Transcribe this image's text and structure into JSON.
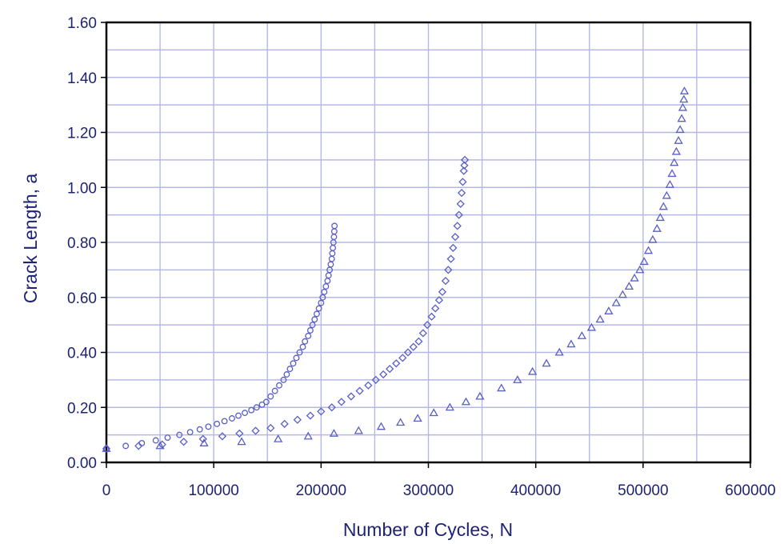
{
  "chart_data": {
    "type": "scatter",
    "title": "",
    "xlabel": "Number of Cycles, N",
    "ylabel": "Crack Length, a",
    "xlim": [
      0,
      600000
    ],
    "ylim": [
      0,
      1.6
    ],
    "x_ticks": [
      0,
      100000,
      200000,
      300000,
      400000,
      500000,
      600000
    ],
    "x_tick_labels": [
      "0",
      "100000",
      "200000",
      "300000",
      "400000",
      "500000",
      "600000"
    ],
    "y_ticks": [
      0,
      0.2,
      0.4,
      0.6,
      0.8,
      1.0,
      1.2,
      1.4,
      1.6
    ],
    "y_tick_labels": [
      "0.00",
      "0.20",
      "0.40",
      "0.60",
      "0.80",
      "1.00",
      "1.20",
      "1.40",
      "1.60"
    ],
    "grid": true,
    "legend": "none",
    "colors": {
      "marker": "#5a5fc8",
      "grid": "#b4b8e8",
      "text": "#1e2374",
      "frame": "#000000"
    },
    "series": [
      {
        "marker": "circle",
        "x": [
          0,
          18000,
          33000,
          46000,
          57000,
          68000,
          78000,
          87000,
          95000,
          103000,
          110000,
          117000,
          123000,
          129000,
          135000,
          140000,
          145000,
          149000,
          153000,
          157000,
          161000,
          165000,
          168000,
          171000,
          174000,
          177000,
          180000,
          183000,
          185000,
          188000,
          190000,
          192000,
          194000,
          196000,
          198000,
          200000,
          201500,
          203000,
          204500,
          206000,
          207000,
          208000,
          209000,
          210000,
          210500,
          211000,
          211500,
          212000,
          212300,
          212500
        ],
        "y": [
          0.05,
          0.06,
          0.07,
          0.08,
          0.09,
          0.1,
          0.11,
          0.12,
          0.13,
          0.14,
          0.15,
          0.16,
          0.17,
          0.18,
          0.19,
          0.2,
          0.21,
          0.22,
          0.24,
          0.26,
          0.28,
          0.3,
          0.32,
          0.34,
          0.36,
          0.38,
          0.4,
          0.42,
          0.44,
          0.46,
          0.48,
          0.5,
          0.52,
          0.54,
          0.56,
          0.58,
          0.6,
          0.62,
          0.64,
          0.66,
          0.68,
          0.7,
          0.72,
          0.74,
          0.76,
          0.78,
          0.8,
          0.82,
          0.84,
          0.86
        ]
      },
      {
        "marker": "diamond",
        "x": [
          0,
          30000,
          52000,
          72000,
          90000,
          108000,
          124000,
          139000,
          153000,
          166000,
          178000,
          190000,
          200000,
          210000,
          219000,
          228000,
          236000,
          244000,
          251000,
          258000,
          264000,
          270000,
          276000,
          281000,
          286000,
          291000,
          295000,
          299000,
          303000,
          306500,
          310000,
          313000,
          316000,
          318500,
          321000,
          323000,
          325000,
          327000,
          328500,
          330000,
          331000,
          332000,
          333000,
          333500,
          334000
        ],
        "y": [
          0.05,
          0.06,
          0.065,
          0.075,
          0.085,
          0.095,
          0.105,
          0.115,
          0.125,
          0.14,
          0.155,
          0.17,
          0.185,
          0.2,
          0.22,
          0.24,
          0.26,
          0.28,
          0.3,
          0.32,
          0.34,
          0.36,
          0.38,
          0.4,
          0.42,
          0.44,
          0.47,
          0.5,
          0.53,
          0.56,
          0.59,
          0.62,
          0.66,
          0.7,
          0.74,
          0.78,
          0.82,
          0.86,
          0.9,
          0.94,
          0.98,
          1.02,
          1.06,
          1.08,
          1.1
        ]
      },
      {
        "marker": "triangle",
        "x": [
          0,
          50000,
          91000,
          126000,
          160000,
          188000,
          212000,
          235000,
          256000,
          274000,
          290000,
          305000,
          320000,
          335000,
          348000,
          368000,
          383000,
          397000,
          410000,
          422000,
          433000,
          443000,
          452000,
          460000,
          468000,
          475000,
          481000,
          487000,
          492000,
          497000,
          501000,
          505000,
          509000,
          513000,
          516000,
          519000,
          522000,
          525000,
          527000,
          529000,
          531000,
          533000,
          534500,
          536000,
          537000,
          538000,
          538500
        ],
        "y": [
          0.05,
          0.06,
          0.07,
          0.075,
          0.085,
          0.095,
          0.105,
          0.115,
          0.13,
          0.145,
          0.16,
          0.18,
          0.2,
          0.22,
          0.24,
          0.27,
          0.3,
          0.33,
          0.36,
          0.4,
          0.43,
          0.46,
          0.49,
          0.52,
          0.55,
          0.58,
          0.61,
          0.64,
          0.67,
          0.7,
          0.73,
          0.77,
          0.81,
          0.85,
          0.89,
          0.93,
          0.97,
          1.01,
          1.05,
          1.09,
          1.13,
          1.17,
          1.21,
          1.25,
          1.29,
          1.32,
          1.35
        ]
      }
    ]
  }
}
